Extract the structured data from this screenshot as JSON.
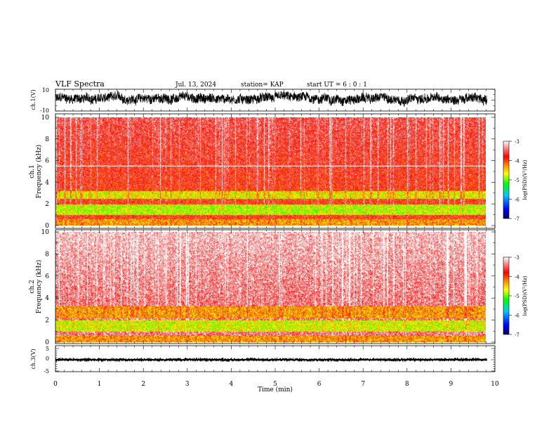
{
  "header": {
    "title": "VLF Spectra",
    "date": "Jul. 13, 2024",
    "station": "station= KAP",
    "start": "start  UT =  6 : 0 : 1"
  },
  "chart_data": [
    {
      "type": "line",
      "name": "ch1-waveform",
      "ylabel": "ch.1(V)",
      "ylim": [
        -10,
        10
      ],
      "yticks": [
        "10",
        "-10"
      ],
      "xlim": [
        0,
        10
      ],
      "data_extent_x": [
        0,
        9.82
      ],
      "description_values": {
        "mean": 1.5,
        "amplitude": 6
      }
    },
    {
      "type": "heatmap",
      "name": "ch1-spectrogram",
      "ylabel": "ch.1\nFrequency (kHz)",
      "ylabel_lines": [
        "ch.1",
        "Frequency (kHz)"
      ],
      "ylim": [
        0,
        10
      ],
      "yticks": [
        "0",
        "2",
        "4",
        "6",
        "8",
        "10"
      ],
      "xlim": [
        0,
        10
      ],
      "colorbar": {
        "label": "log(PSD)(V²/Hz)",
        "range": [
          -7,
          -3
        ],
        "ticks": [
          "-3",
          "-4",
          "-5",
          "-6",
          "-7"
        ]
      },
      "bands": [
        {
          "f": [
            0.0,
            0.6
          ],
          "logpsd": -4.3
        },
        {
          "f": [
            1.0,
            2.0
          ],
          "logpsd": -4.8
        },
        {
          "f": [
            2.5,
            3.2
          ],
          "logpsd": -4.6
        },
        {
          "f": [
            3.2,
            10.0
          ],
          "logpsd": -3.8
        }
      ],
      "horizontal_line_khz": 5.5
    },
    {
      "type": "heatmap",
      "name": "ch2-spectrogram",
      "ylabel": "ch.2\nFrequency (kHz)",
      "ylabel_lines": [
        "ch.2",
        "Frequency (kHz)"
      ],
      "ylim": [
        0,
        10
      ],
      "yticks": [
        "0",
        "2",
        "4",
        "6",
        "8",
        "10"
      ],
      "xlim": [
        0,
        10
      ],
      "colorbar": {
        "label": "log(PSD)(V²/Hz)",
        "range": [
          -7,
          -3
        ],
        "ticks": [
          "-3",
          "-4",
          "-5",
          "-6",
          "-7"
        ]
      },
      "bands": [
        {
          "f": [
            0.0,
            0.6
          ],
          "logpsd": -4.3
        },
        {
          "f": [
            1.0,
            2.0
          ],
          "logpsd": -4.7
        },
        {
          "f": [
            2.2,
            3.3
          ],
          "logpsd": -4.3
        },
        {
          "f": [
            3.3,
            10.0
          ],
          "logpsd": -3.4
        }
      ]
    },
    {
      "type": "line",
      "name": "ch3-waveform",
      "ylabel": "ch.3(V)",
      "ylim": [
        -5,
        5
      ],
      "yticks": [
        "5",
        "0",
        "-5"
      ],
      "xlim": [
        0,
        10
      ],
      "data_extent_x": [
        0,
        9.82
      ],
      "description_values": {
        "mean": 0,
        "amplitude": 0.4
      },
      "xlabel": "Time (min)",
      "xticks": [
        "0",
        "1",
        "2",
        "3",
        "4",
        "5",
        "6",
        "7",
        "8",
        "9",
        "10"
      ]
    }
  ],
  "colors": {
    "axis": "#000000",
    "waveform": "#000000",
    "grid_line": "#ffffff",
    "colormap": [
      "#000070",
      "#0000ff",
      "#00c8ff",
      "#00ff00",
      "#ffff00",
      "#ff8000",
      "#ff0000",
      "#ffffff"
    ]
  }
}
